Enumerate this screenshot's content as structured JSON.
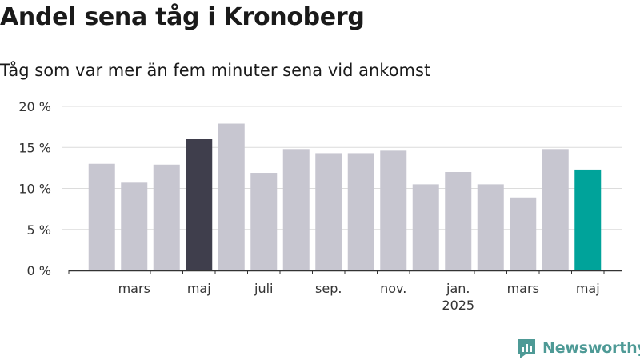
{
  "title": "Andel sena tåg i Kronoberg",
  "subtitle": "Tåg som var mer än fem minuter sena vid ankomst",
  "brand": "Newsworthy",
  "colors": {
    "bar": "#c7c6d0",
    "highlight_dark": "#3f3e4c",
    "highlight_accent": "#00a39a",
    "grid": "#dcdcdc",
    "axis": "#333333",
    "brand": "#4e9a96"
  },
  "chart_data": {
    "type": "bar",
    "categories": [
      "2024-02",
      "2024-03",
      "2024-04",
      "2024-05",
      "2024-06",
      "2024-07",
      "2024-08",
      "2024-09",
      "2024-10",
      "2024-11",
      "2024-12",
      "2025-01",
      "2025-02",
      "2025-03",
      "2025-04",
      "2025-05"
    ],
    "values": [
      13,
      10.7,
      12.9,
      16,
      17.9,
      11.9,
      14.8,
      14.3,
      14.3,
      14.6,
      10.5,
      12,
      10.5,
      8.9,
      14.8,
      12.3
    ],
    "highlight": {
      "2024-05": "highlight_dark",
      "2025-05": "highlight_accent"
    },
    "ylim": [
      0,
      20
    ],
    "yticks": [
      {
        "value": 0,
        "label": "0 %"
      },
      {
        "value": 5,
        "label": "5 %"
      },
      {
        "value": 10,
        "label": "10 %"
      },
      {
        "value": 15,
        "label": "15 %"
      },
      {
        "value": 20,
        "label": "20 %"
      }
    ],
    "xticks": [
      {
        "category": "2024-03",
        "label": "mars"
      },
      {
        "category": "2024-05",
        "label": "maj"
      },
      {
        "category": "2024-07",
        "label": "juli"
      },
      {
        "category": "2024-09",
        "label": "sep."
      },
      {
        "category": "2024-11",
        "label": "nov."
      },
      {
        "category": "2025-01",
        "label": "jan.",
        "sublabel": "2025"
      },
      {
        "category": "2025-03",
        "label": "mars"
      },
      {
        "category": "2025-05",
        "label": "maj"
      }
    ],
    "grid": true
  }
}
